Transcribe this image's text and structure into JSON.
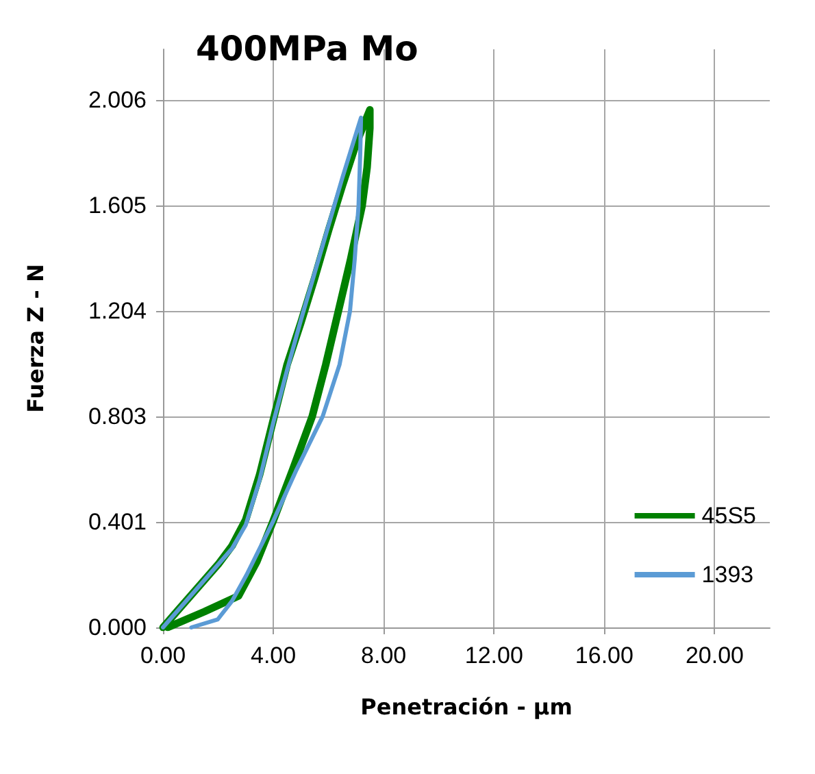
{
  "chart_data": {
    "type": "line",
    "title": "400MPa Mo",
    "xlabel": "Penetración - µm",
    "ylabel": "Fuerza Z - N",
    "xlim": [
      0,
      22
    ],
    "xticks": [
      {
        "value": 0,
        "label": "0.00"
      },
      {
        "value": 4,
        "label": "4.00"
      },
      {
        "value": 8,
        "label": "8.00"
      },
      {
        "value": 12,
        "label": "12.00"
      },
      {
        "value": 16,
        "label": "16.00"
      },
      {
        "value": 20,
        "label": "20.00"
      }
    ],
    "ylim": [
      0,
      2.2
    ],
    "yticks": [
      {
        "value": 0,
        "label": "0.000"
      },
      {
        "value": 0.401,
        "label": "0.401"
      },
      {
        "value": 0.803,
        "label": "0.803"
      },
      {
        "value": 1.204,
        "label": "1.204"
      },
      {
        "value": 1.605,
        "label": "1.605"
      },
      {
        "value": 2.006,
        "label": "2.006"
      }
    ],
    "grid": true,
    "legend": "right",
    "marker": "none",
    "line_style": "solid",
    "series": [
      {
        "name": "45S5",
        "color": "#008000",
        "x": [
          0,
          0.5,
          1,
          1.5,
          2,
          2.5,
          3,
          3.5,
          4,
          4.5,
          5,
          5.5,
          6,
          6.5,
          7,
          7.5,
          7.5,
          7.4,
          7.22,
          6.8,
          6.36,
          5.9,
          5.41,
          4.7,
          3.98,
          3.4,
          2.74,
          1.5,
          0.17
        ],
        "values": [
          0,
          0.06,
          0.12,
          0.18,
          0.24,
          0.31,
          0.41,
          0.58,
          0.79,
          1.0,
          1.16,
          1.33,
          1.51,
          1.68,
          1.84,
          1.97,
          1.9,
          1.75,
          1.605,
          1.4,
          1.204,
          1.0,
          0.803,
          0.6,
          0.401,
          0.25,
          0.12,
          0.06,
          0
        ]
      },
      {
        "name": "1393",
        "color": "#5b9bd5",
        "x": [
          0,
          0.5,
          1,
          1.5,
          2,
          2.5,
          3,
          3.5,
          4,
          4.5,
          5,
          5.5,
          6,
          6.5,
          7,
          7.18,
          7.15,
          7.09,
          6.95,
          6.78,
          6.4,
          5.79,
          4.84,
          3.98,
          3.03,
          2.5,
          1.98,
          1.03
        ],
        "values": [
          0,
          0.06,
          0.12,
          0.18,
          0.24,
          0.3,
          0.39,
          0.56,
          0.78,
          0.98,
          1.17,
          1.35,
          1.53,
          1.71,
          1.88,
          1.94,
          1.8,
          1.605,
          1.4,
          1.204,
          1.0,
          0.803,
          0.6,
          0.401,
          0.2,
          0.1,
          0.03,
          0
        ]
      }
    ]
  }
}
